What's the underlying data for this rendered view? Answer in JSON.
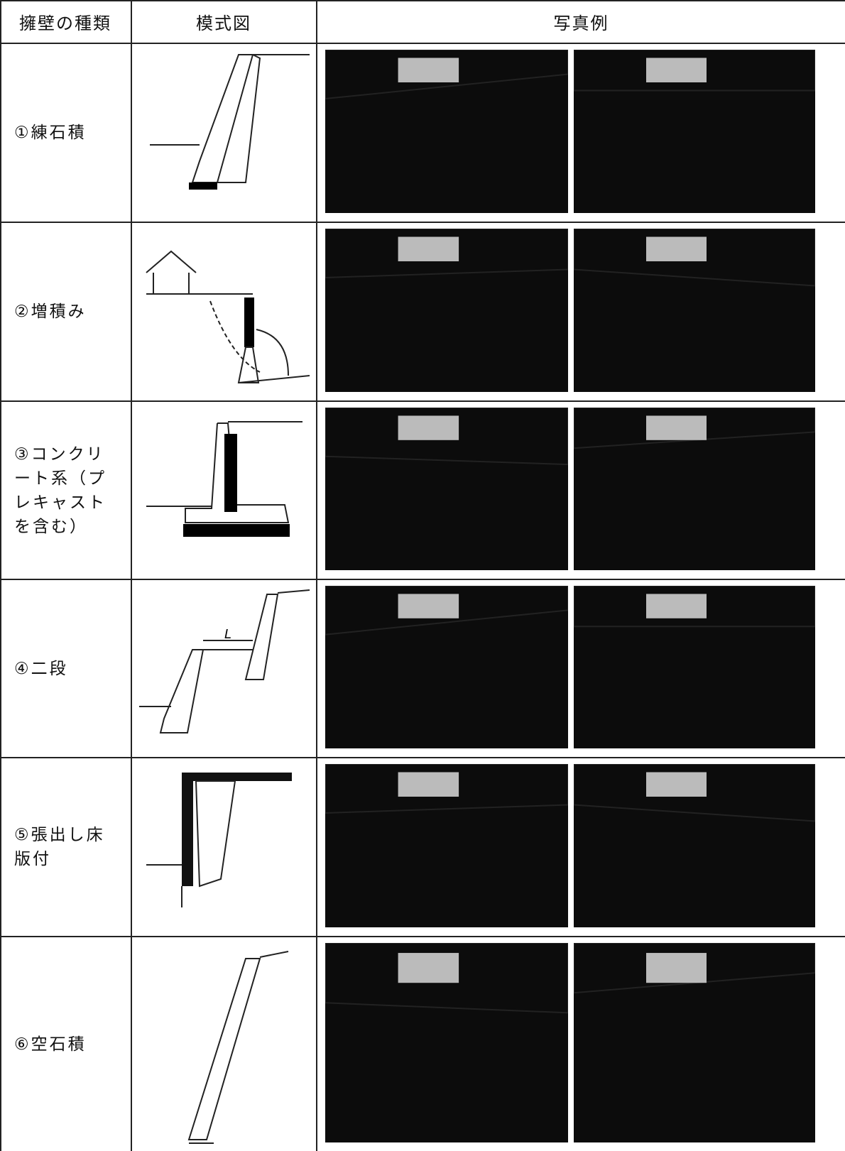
{
  "table": {
    "headers": [
      "擁壁の種類",
      "模式図",
      "写真例"
    ],
    "rows": [
      {
        "type": "①練石積"
      },
      {
        "type": "②増積み"
      },
      {
        "type": "③コンクリート系（プレキャストを含む）"
      },
      {
        "type": "④二段"
      },
      {
        "type": "⑤張出し床版付"
      },
      {
        "type": "⑥空石積"
      }
    ],
    "diagram_labels": {
      "distance": "L"
    }
  }
}
